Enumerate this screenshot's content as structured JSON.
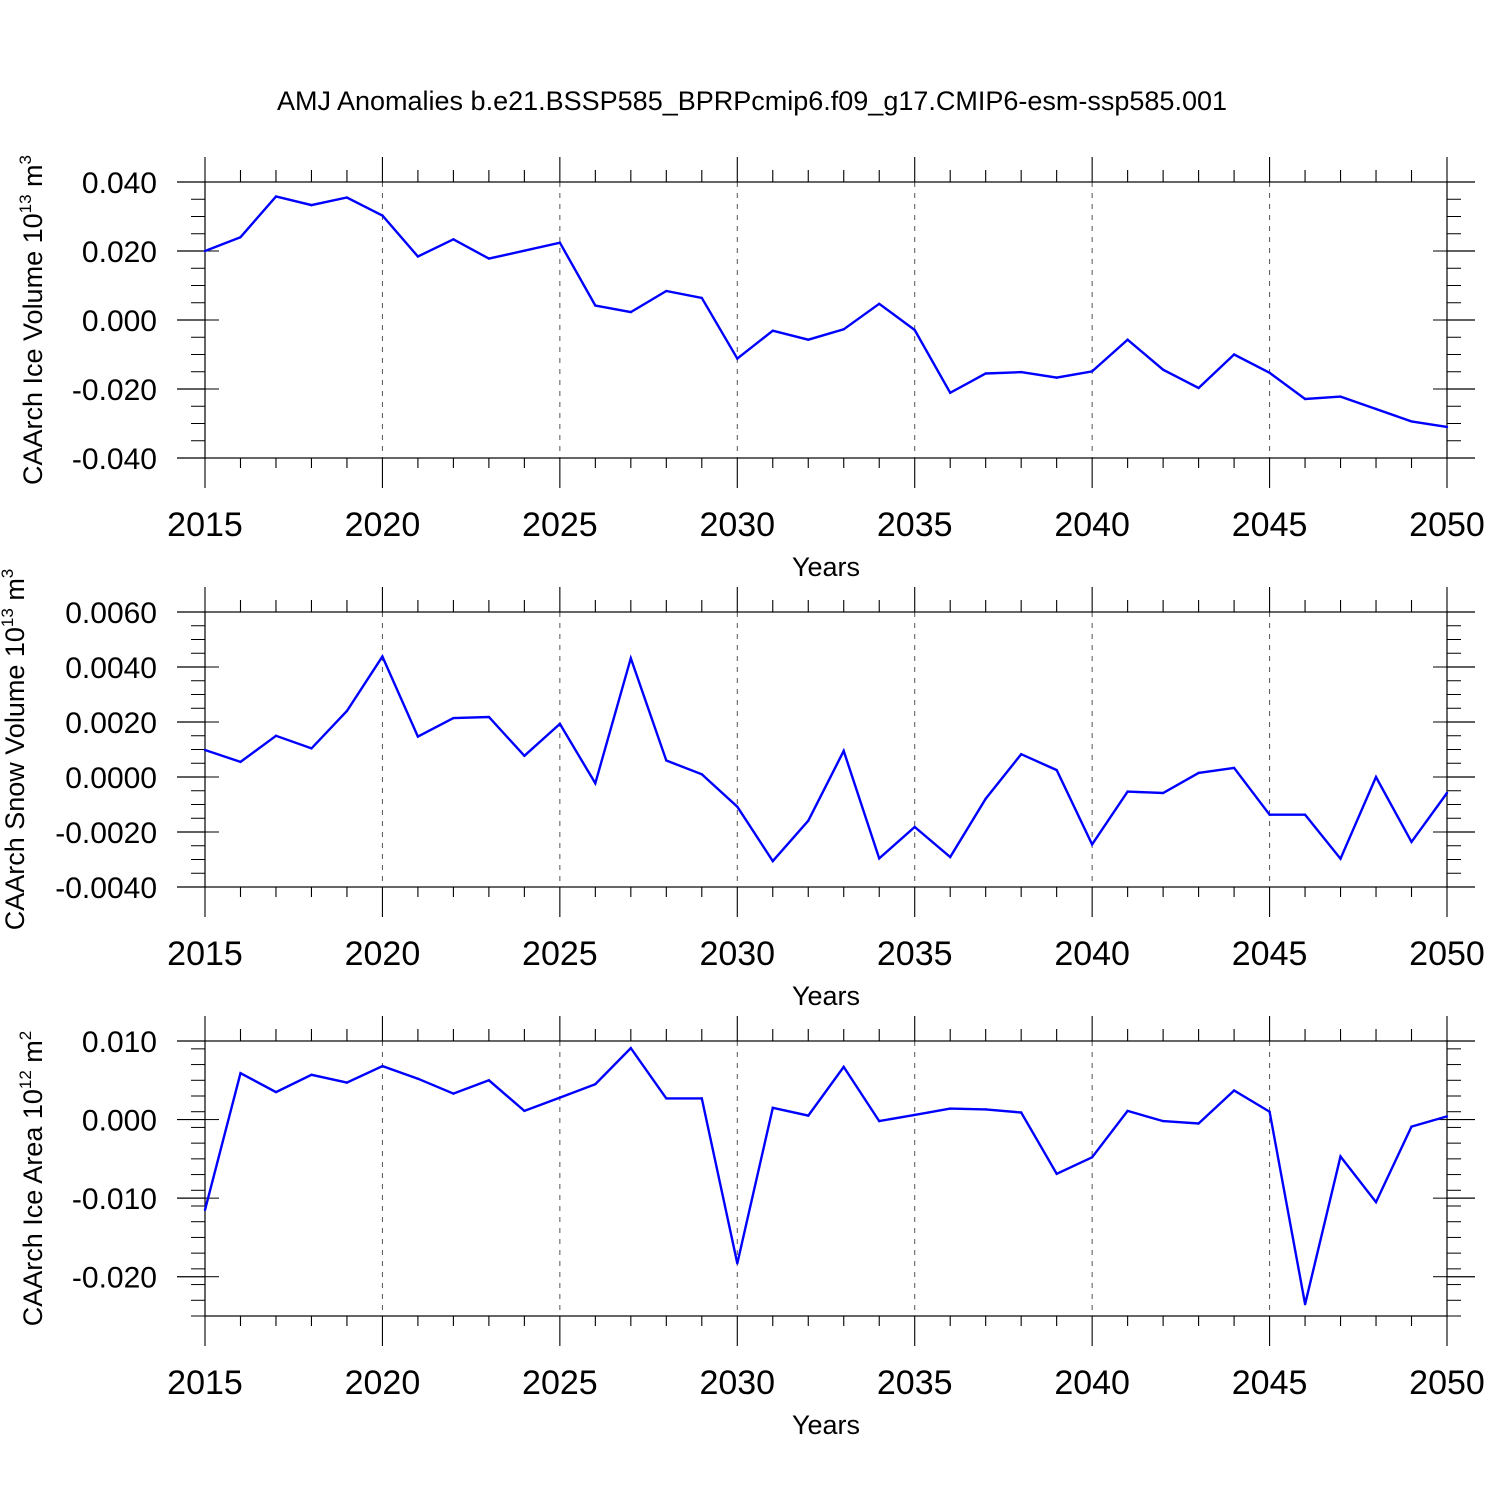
{
  "chart_data": {
    "title": "AMJ Anomalies b.e21.BSSP585_BPRPcmip6.f09_g17.CMIP6-esm-ssp585.001",
    "type": "line",
    "series_color": "#0000ff",
    "panels": [
      {
        "type": "line",
        "ylabel": "CAArch Ice Volume 10",
        "ylabel_exponent": "13",
        "ylabel_unit": " m",
        "ylabel_unit_exponent": "3",
        "xlabel": "Years",
        "xlim": [
          2015,
          2050
        ],
        "ylim": [
          -0.04,
          0.04
        ],
        "x_ticks": [
          "2015",
          "2020",
          "2025",
          "2030",
          "2035",
          "2040",
          "2045",
          "2050"
        ],
        "y_ticks": [
          {
            "value": 0.04,
            "label": "0.040"
          },
          {
            "value": 0.02,
            "label": "0.020"
          },
          {
            "value": 0.0,
            "label": "0.000"
          },
          {
            "value": -0.02,
            "label": "-0.020"
          },
          {
            "value": -0.04,
            "label": "-0.040"
          }
        ],
        "y_minor_step": 0.005,
        "x": [
          2015,
          2016,
          2017,
          2018,
          2019,
          2020,
          2021,
          2022,
          2023,
          2024,
          2025,
          2026,
          2027,
          2028,
          2029,
          2030,
          2031,
          2032,
          2033,
          2034,
          2035,
          2036,
          2037,
          2038,
          2039,
          2040,
          2041,
          2042,
          2043,
          2044,
          2045,
          2046,
          2047,
          2048,
          2049,
          2050
        ],
        "values": [
          0.02,
          0.024,
          0.0358,
          0.0333,
          0.0355,
          0.0303,
          0.0184,
          0.0234,
          0.0178,
          0.0201,
          0.0224,
          0.0042,
          0.0023,
          0.0084,
          0.0064,
          -0.0112,
          -0.0031,
          -0.0057,
          -0.0027,
          0.0047,
          -0.0029,
          -0.0211,
          -0.0155,
          -0.0151,
          -0.0167,
          -0.0149,
          -0.0057,
          -0.0144,
          -0.0197,
          -0.01,
          -0.0153,
          -0.0229,
          -0.0222,
          -0.0258,
          -0.0294,
          -0.031
        ]
      },
      {
        "type": "line",
        "ylabel": "CAArch Snow Volume 10",
        "ylabel_exponent": "13",
        "ylabel_unit": " m",
        "ylabel_unit_exponent": "3",
        "xlabel": "Years",
        "xlim": [
          2015,
          2050
        ],
        "ylim": [
          -0.004,
          0.006
        ],
        "x_ticks": [
          "2015",
          "2020",
          "2025",
          "2030",
          "2035",
          "2040",
          "2045",
          "2050"
        ],
        "y_ticks": [
          {
            "value": 0.006,
            "label": "0.0060"
          },
          {
            "value": 0.004,
            "label": "0.0040"
          },
          {
            "value": 0.002,
            "label": "0.0020"
          },
          {
            "value": 0.0,
            "label": "0.0000"
          },
          {
            "value": -0.002,
            "label": "-0.0020"
          },
          {
            "value": -0.004,
            "label": "-0.0040"
          }
        ],
        "y_minor_step": 0.0005,
        "x": [
          2015,
          2016,
          2017,
          2018,
          2019,
          2020,
          2021,
          2022,
          2023,
          2024,
          2025,
          2026,
          2027,
          2028,
          2029,
          2030,
          2031,
          2032,
          2033,
          2034,
          2035,
          2036,
          2037,
          2038,
          2039,
          2040,
          2041,
          2042,
          2043,
          2044,
          2045,
          2046,
          2047,
          2048,
          2049,
          2050
        ],
        "values": [
          0.00098,
          0.00055,
          0.0015,
          0.00104,
          0.0024,
          0.00438,
          0.00147,
          0.00214,
          0.00218,
          0.00077,
          0.00193,
          -0.00023,
          0.00432,
          0.0006,
          0.0001,
          -0.00108,
          -0.00306,
          -0.00159,
          0.00095,
          -0.00296,
          -0.00182,
          -0.00291,
          -0.00079,
          0.00083,
          0.00025,
          -0.00245,
          -0.00053,
          -0.00058,
          0.00015,
          0.00033,
          -0.00137,
          -0.00137,
          -0.00297,
          0.0,
          -0.00236,
          -0.00058
        ]
      },
      {
        "type": "line",
        "ylabel": "CAArch Ice Area 10",
        "ylabel_exponent": "12",
        "ylabel_unit": " m",
        "ylabel_unit_exponent": "2",
        "xlabel": "Years",
        "xlim": [
          2015,
          2050
        ],
        "ylim": [
          -0.025,
          0.01
        ],
        "x_ticks": [
          "2015",
          "2020",
          "2025",
          "2030",
          "2035",
          "2040",
          "2045",
          "2050"
        ],
        "y_ticks": [
          {
            "value": 0.01,
            "label": "0.010"
          },
          {
            "value": 0.0,
            "label": "0.000"
          },
          {
            "value": -0.01,
            "label": "-0.010"
          },
          {
            "value": -0.02,
            "label": "-0.020"
          }
        ],
        "y_minor_step": 0.002,
        "x": [
          2015,
          2016,
          2017,
          2018,
          2019,
          2020,
          2021,
          2022,
          2023,
          2024,
          2025,
          2026,
          2027,
          2028,
          2029,
          2030,
          2031,
          2032,
          2033,
          2034,
          2035,
          2036,
          2037,
          2038,
          2039,
          2040,
          2041,
          2042,
          2043,
          2044,
          2045,
          2046,
          2047,
          2048,
          2049,
          2050
        ],
        "values": [
          -0.0115,
          0.0059,
          0.0035,
          0.0057,
          0.0047,
          0.0068,
          0.0052,
          0.0033,
          0.005,
          0.0011,
          0.0028,
          0.0045,
          0.0091,
          0.0027,
          0.0027,
          -0.0183,
          0.0015,
          0.0005,
          0.0067,
          -0.0002,
          0.0006,
          0.0014,
          0.0013,
          0.0009,
          -0.0069,
          -0.0048,
          0.0011,
          -0.0002,
          -0.0005,
          0.0037,
          0.001,
          -0.0235,
          -0.0047,
          -0.0105,
          -0.0009,
          0.0004
        ]
      }
    ]
  }
}
